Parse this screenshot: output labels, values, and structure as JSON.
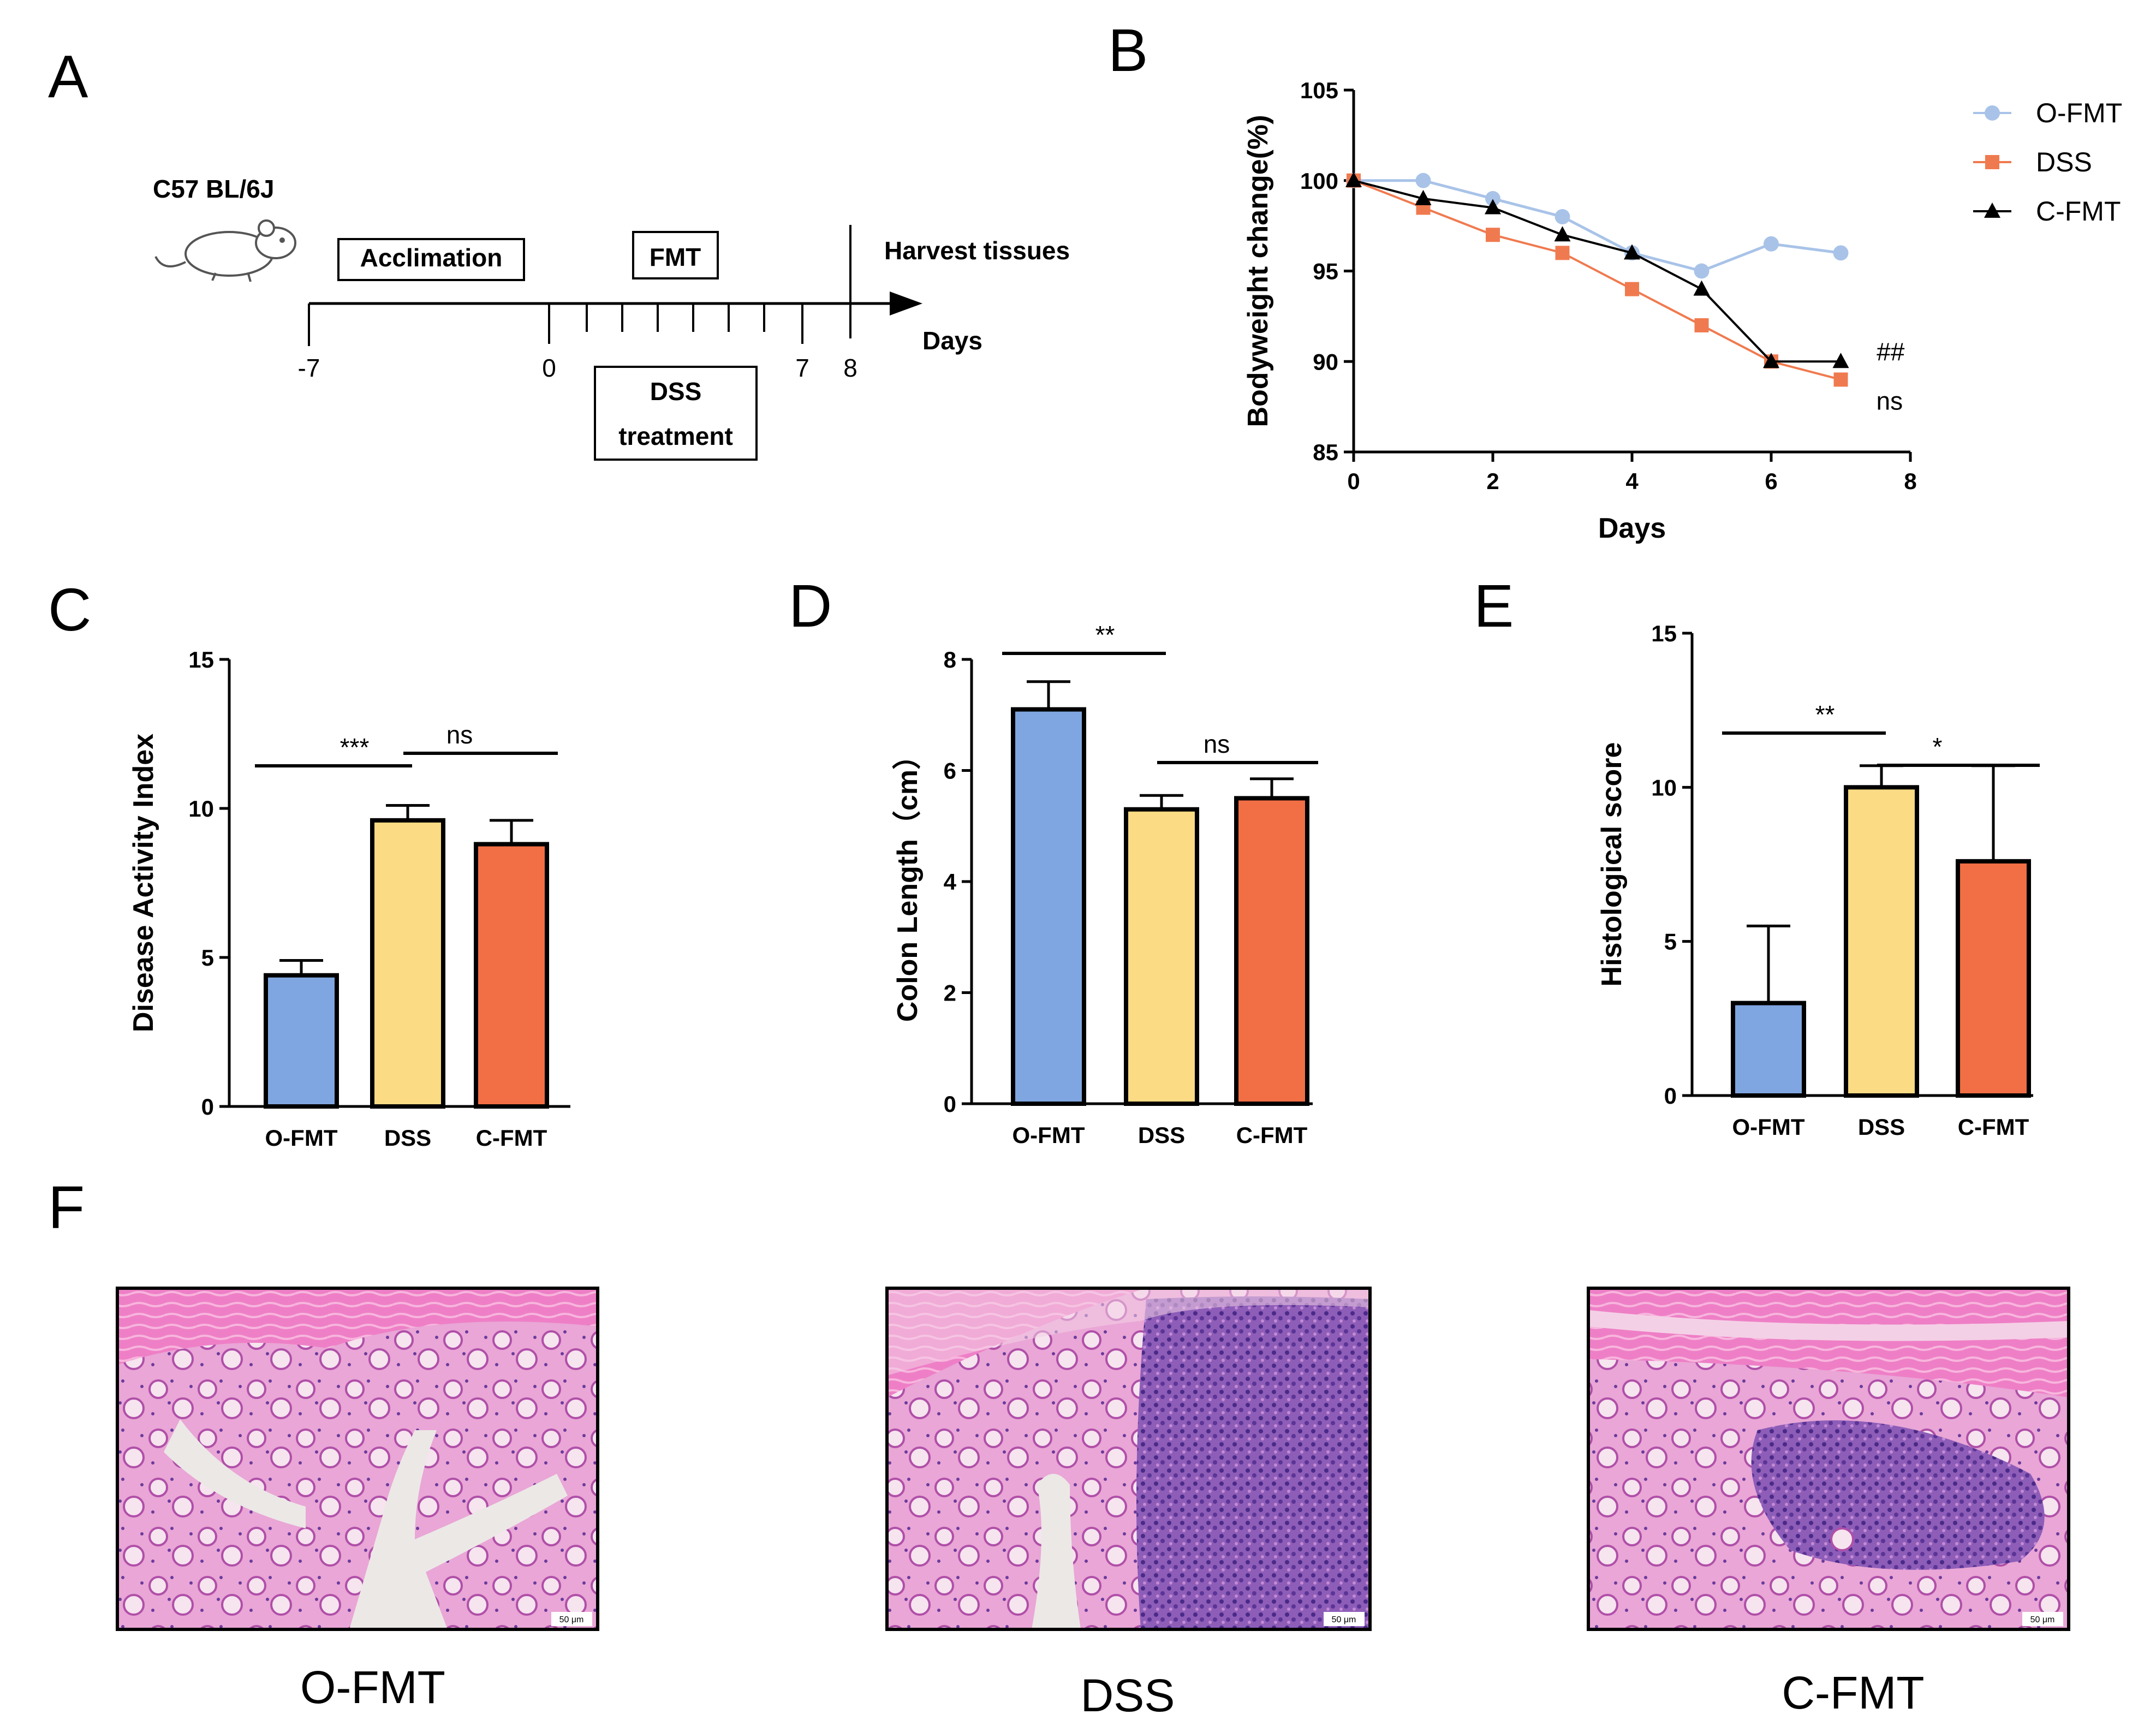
{
  "panels": {
    "A": "A",
    "B": "B",
    "C": "C",
    "D": "D",
    "E": "E",
    "F": "F"
  },
  "timeline": {
    "mouse_label": "C57 BL/6J",
    "acclimation": "Acclimation",
    "fmt": "FMT",
    "harvest": "Harvest tissues",
    "days": "Days",
    "dss_line1": "DSS",
    "dss_line2": "treatment",
    "ticks": [
      "-7",
      "0",
      "7",
      "8"
    ]
  },
  "colors": {
    "ofmt_line": "#a9c3e8",
    "dss_line": "#f07a4f",
    "cfmt_line": "#000000",
    "bar_ofmt": "#7fa6e0",
    "bar_dss": "#fbdb83",
    "bar_cfmt": "#f26e44"
  },
  "chart_data": [
    {
      "id": "B",
      "type": "line",
      "title": "",
      "xlabel": "Days",
      "ylabel": "Bodyweight change(%)",
      "xlim": [
        0,
        8
      ],
      "ylim": [
        85,
        105
      ],
      "xticks": [
        0,
        2,
        4,
        6,
        8
      ],
      "yticks": [
        85,
        90,
        95,
        100,
        105
      ],
      "legend_position": "top-right",
      "series": [
        {
          "name": "O-FMT",
          "marker": "circle",
          "x": [
            0,
            1,
            2,
            3,
            4,
            5,
            6,
            7
          ],
          "values": [
            100,
            100,
            99,
            98,
            96,
            95,
            96.5,
            96
          ]
        },
        {
          "name": "DSS",
          "marker": "square",
          "x": [
            0,
            1,
            2,
            3,
            4,
            5,
            6,
            7
          ],
          "values": [
            100,
            98.5,
            97,
            96,
            94,
            92,
            90,
            89
          ]
        },
        {
          "name": "C-FMT",
          "marker": "triangle",
          "x": [
            0,
            1,
            2,
            3,
            4,
            5,
            6,
            7
          ],
          "values": [
            100,
            99,
            98.5,
            97,
            96,
            94,
            90,
            90
          ]
        }
      ],
      "annotations": {
        "cfmt": "##",
        "dss": "ns"
      }
    },
    {
      "id": "C",
      "type": "bar",
      "title": "",
      "xlabel": "",
      "ylabel": "Disease Activity Index",
      "categories": [
        "O-FMT",
        "DSS",
        "C-FMT"
      ],
      "values": [
        4.4,
        9.6,
        8.8
      ],
      "errors": [
        0.5,
        0.5,
        0.8
      ],
      "ylim": [
        0,
        15
      ],
      "yticks": [
        0,
        5,
        10,
        15
      ],
      "significance": [
        {
          "from": 0,
          "to": 1,
          "label": "***"
        },
        {
          "from": 1,
          "to": 2,
          "label": "ns"
        }
      ]
    },
    {
      "id": "D",
      "type": "bar",
      "title": "",
      "xlabel": "",
      "ylabel": "Colon Length（cm）",
      "categories": [
        "O-FMT",
        "DSS",
        "C-FMT"
      ],
      "values": [
        7.1,
        5.3,
        5.5
      ],
      "errors": [
        0.5,
        0.25,
        0.35
      ],
      "ylim": [
        0,
        8
      ],
      "yticks": [
        0,
        2,
        4,
        6,
        8
      ],
      "significance": [
        {
          "from": 0,
          "to": 1,
          "label": "**"
        },
        {
          "from": 1,
          "to": 2,
          "label": "ns"
        }
      ]
    },
    {
      "id": "E",
      "type": "bar",
      "title": "",
      "xlabel": "",
      "ylabel": "Histological score",
      "categories": [
        "O-FMT",
        "DSS",
        "C-FMT"
      ],
      "values": [
        3.0,
        10.0,
        7.6
      ],
      "errors": [
        2.5,
        0.7,
        3.1
      ],
      "ylim": [
        0,
        15
      ],
      "yticks": [
        0,
        5,
        10,
        15
      ],
      "significance": [
        {
          "from": 0,
          "to": 1,
          "label": "**"
        },
        {
          "from": 1,
          "to": 2,
          "label": "*"
        }
      ]
    }
  ],
  "histology": {
    "images": [
      {
        "caption": "O-FMT",
        "scale": "50 μm"
      },
      {
        "caption": "DSS",
        "scale": "50 μm"
      },
      {
        "caption": "C-FMT",
        "scale": "50 μm"
      }
    ]
  }
}
